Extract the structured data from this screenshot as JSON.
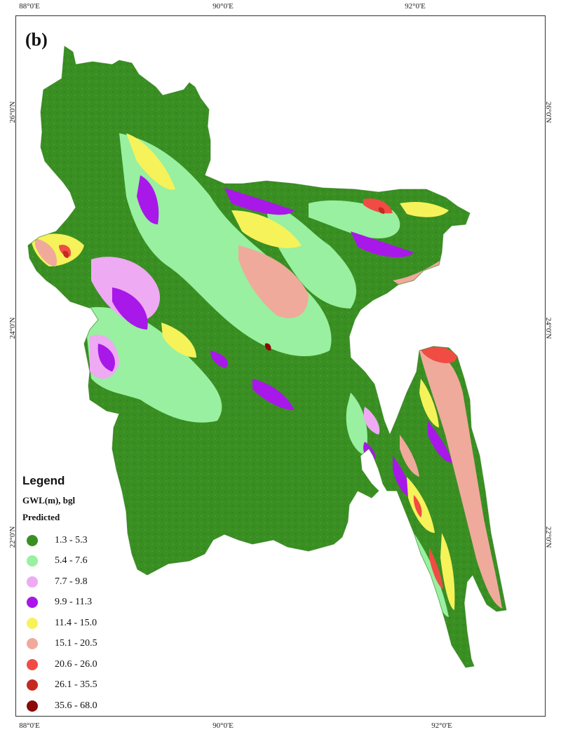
{
  "panel_label": "(b)",
  "graticule": {
    "top": [
      "88°0'E",
      "90°0'E",
      "92°0'E"
    ],
    "bottom": [
      "88°0'E",
      "90°0'E",
      "92°0'E"
    ],
    "left": [
      "26°0'N",
      "24°0'N",
      "22°0'N"
    ],
    "right": [
      "26°0'N",
      "24°0'N",
      "22°0'N"
    ]
  },
  "legend": {
    "title": "Legend",
    "variable": "GWL(m), bgl",
    "subtitle": "Predicted",
    "classes": [
      {
        "range": "1.3 - 5.3",
        "color": "#3a8f23"
      },
      {
        "range": "5.4 - 7.6",
        "color": "#98f0a0"
      },
      {
        "range": "7.7 - 9.8",
        "color": "#eeaaf2"
      },
      {
        "range": "9.9 - 11.3",
        "color": "#a818e8"
      },
      {
        "range": "11.4 - 15.0",
        "color": "#f6f25a"
      },
      {
        "range": "15.1 - 20.5",
        "color": "#efaa9c"
      },
      {
        "range": "20.6 - 26.0",
        "color": "#f04c44"
      },
      {
        "range": "26.1 - 35.5",
        "color": "#c42a20"
      },
      {
        "range": "35.6 - 68.0",
        "color": "#8c0a06"
      }
    ]
  }
}
